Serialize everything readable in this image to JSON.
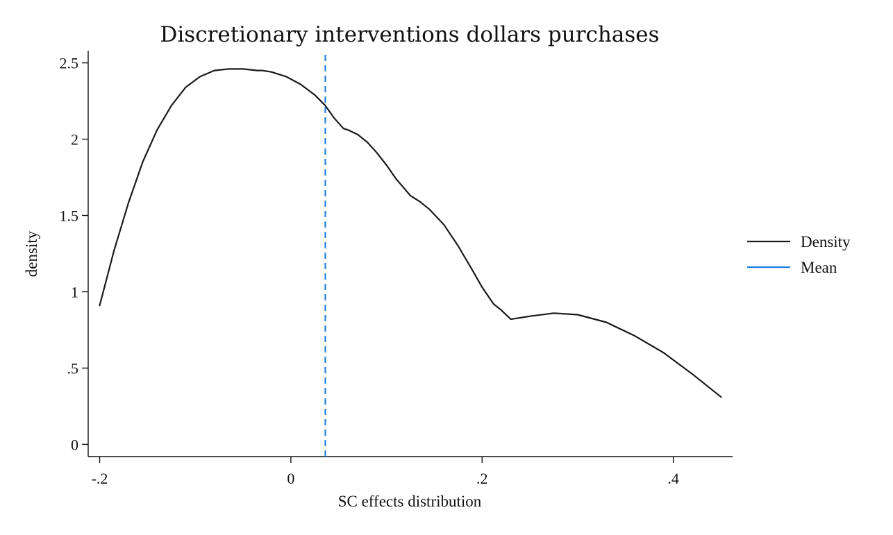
{
  "chart_data": {
    "type": "line",
    "title": "Discretionary interventions dollars purchases",
    "xlabel": "SC effects distribution",
    "ylabel": "density",
    "xlim": [
      -0.212,
      0.462
    ],
    "ylim": [
      -0.08,
      2.58
    ],
    "x_ticks": [
      {
        "value": -0.2,
        "label": "-.2"
      },
      {
        "value": 0,
        "label": "0"
      },
      {
        "value": 0.2,
        "label": ".2"
      },
      {
        "value": 0.4,
        "label": ".4"
      }
    ],
    "y_ticks": [
      {
        "value": 0,
        "label": "0"
      },
      {
        "value": 0.5,
        "label": ".5"
      },
      {
        "value": 1,
        "label": "1"
      },
      {
        "value": 1.5,
        "label": "1.5"
      },
      {
        "value": 2,
        "label": "2"
      },
      {
        "value": 2.5,
        "label": "2.5"
      }
    ],
    "grid": false,
    "legend_position": "right",
    "series": [
      {
        "name": "Density",
        "color": "#1a1a1a",
        "style": "solid",
        "x": [
          -0.2,
          -0.185,
          -0.17,
          -0.155,
          -0.14,
          -0.125,
          -0.11,
          -0.095,
          -0.08,
          -0.065,
          -0.05,
          -0.035,
          -0.03,
          -0.02,
          -0.005,
          0.01,
          0.025,
          0.036,
          0.045,
          0.055,
          0.06,
          0.07,
          0.08,
          0.09,
          0.1,
          0.11,
          0.125,
          0.135,
          0.145,
          0.16,
          0.175,
          0.19,
          0.2,
          0.212,
          0.22,
          0.23,
          0.25,
          0.275,
          0.3,
          0.33,
          0.36,
          0.39,
          0.42,
          0.45
        ],
        "y": [
          0.91,
          1.27,
          1.58,
          1.85,
          2.06,
          2.22,
          2.34,
          2.41,
          2.45,
          2.46,
          2.46,
          2.45,
          2.45,
          2.44,
          2.41,
          2.36,
          2.29,
          2.22,
          2.14,
          2.07,
          2.06,
          2.03,
          1.98,
          1.91,
          1.83,
          1.74,
          1.63,
          1.59,
          1.54,
          1.44,
          1.3,
          1.14,
          1.03,
          0.92,
          0.88,
          0.82,
          0.84,
          0.86,
          0.85,
          0.8,
          0.71,
          0.6,
          0.46,
          0.31
        ]
      },
      {
        "name": "Mean",
        "color": "#1f7fe0",
        "style": "dashed",
        "x": [
          0.036,
          0.036
        ],
        "y": [
          -0.08,
          2.58
        ]
      }
    ]
  }
}
